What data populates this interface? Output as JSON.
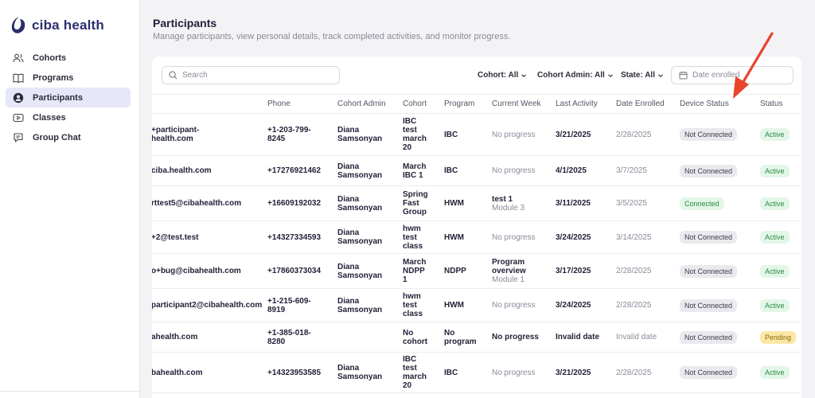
{
  "brand": {
    "name": "ciba health",
    "color": "#2a2f6b"
  },
  "sidebar": {
    "items": [
      {
        "label": "Cohorts",
        "icon": "users-icon",
        "active": false
      },
      {
        "label": "Programs",
        "icon": "book-icon",
        "active": false
      },
      {
        "label": "Participants",
        "icon": "person-icon",
        "active": true
      },
      {
        "label": "Classes",
        "icon": "play-icon",
        "active": false
      },
      {
        "label": "Group Chat",
        "icon": "chat-icon",
        "active": false
      }
    ]
  },
  "page": {
    "title": "Participants",
    "subtitle": "Manage participants, view personal details, track completed activities, and monitor progress."
  },
  "toolbar": {
    "search_placeholder": "Search",
    "filters": [
      {
        "label": "Cohort: All"
      },
      {
        "label": "Cohort Admin: All"
      },
      {
        "label": "State: All"
      }
    ],
    "date_placeholder": "Date enrolled"
  },
  "table": {
    "columns": [
      "Phone",
      "Cohort Admin",
      "Cohort",
      "Program",
      "Current Week",
      "Last Activity",
      "Date Enrolled",
      "Device Status",
      "Status"
    ],
    "rows": [
      {
        "email": "+participant-\nhealth.com",
        "phone": "+1-203-799-\n8245",
        "admin": "Diana\nSamsonyan",
        "cohort": "IBC\ntest\nmarch\n20",
        "program": "IBC",
        "week": "No progress",
        "week_sub": "",
        "last": "3/21/2025",
        "enrolled": "2/28/2025",
        "device": "Not Connected",
        "status": "Active"
      },
      {
        "email": "ciba.health.com",
        "phone": "+17276921462",
        "admin": "Diana\nSamsonyan",
        "cohort": "March\nIBC 1",
        "program": "IBC",
        "week": "No progress",
        "week_sub": "",
        "last": "4/1/2025",
        "enrolled": "3/7/2025",
        "device": "Not Connected",
        "status": "Active"
      },
      {
        "email": "rttest5@cibahealth.com",
        "phone": "+16609192032",
        "admin": "Diana\nSamsonyan",
        "cohort": "Spring\nFast\nGroup",
        "program": "HWM",
        "week": "test 1",
        "week_sub": "Module 3",
        "last": "3/11/2025",
        "enrolled": "3/5/2025",
        "device": "Connected",
        "status": "Active"
      },
      {
        "email": "+2@test.test",
        "phone": "+14327334593",
        "admin": "Diana\nSamsonyan",
        "cohort": "hwm\ntest\nclass",
        "program": "HWM",
        "week": "No progress",
        "week_sub": "",
        "last": "3/24/2025",
        "enrolled": "3/14/2025",
        "device": "Not Connected",
        "status": "Active"
      },
      {
        "email": "o+bug@cibahealth.com",
        "phone": "+17860373034",
        "admin": "Diana\nSamsonyan",
        "cohort": "March\nNDPP\n1",
        "program": "NDPP",
        "week": "Program\noverview",
        "week_sub": "Module 1",
        "last": "3/17/2025",
        "enrolled": "2/28/2025",
        "device": "Not Connected",
        "status": "Active"
      },
      {
        "email": "participant2@cibahealth.com",
        "phone": "+1-215-609-\n8919",
        "admin": "Diana\nSamsonyan",
        "cohort": "hwm\ntest\nclass",
        "program": "HWM",
        "week": "No progress",
        "week_sub": "",
        "last": "3/24/2025",
        "enrolled": "2/28/2025",
        "device": "Not Connected",
        "status": "Active"
      },
      {
        "email": "ahealth.com",
        "phone": "+1-385-018-\n8280",
        "admin": "",
        "cohort": "No\ncohort",
        "program": "No\nprogram",
        "week": "No progress",
        "week_sub": "",
        "last": "Invalid date",
        "enrolled": "Invalid date",
        "device": "Not Connected",
        "status": "Pending"
      },
      {
        "email": "bahealth.com",
        "phone": "+14323953585",
        "admin": "Diana\nSamsonyan",
        "cohort": "IBC\ntest\nmarch\n20",
        "program": "IBC",
        "week": "No progress",
        "week_sub": "",
        "last": "3/21/2025",
        "enrolled": "2/28/2025",
        "device": "Not Connected",
        "status": "Active"
      }
    ]
  },
  "colors": {
    "accent": "#2a2f6b",
    "arrow": "#e8442e",
    "active_pill": "#e3f6e7",
    "pending_pill": "#fce7a5",
    "connected_pill": "#e3f6e7"
  }
}
